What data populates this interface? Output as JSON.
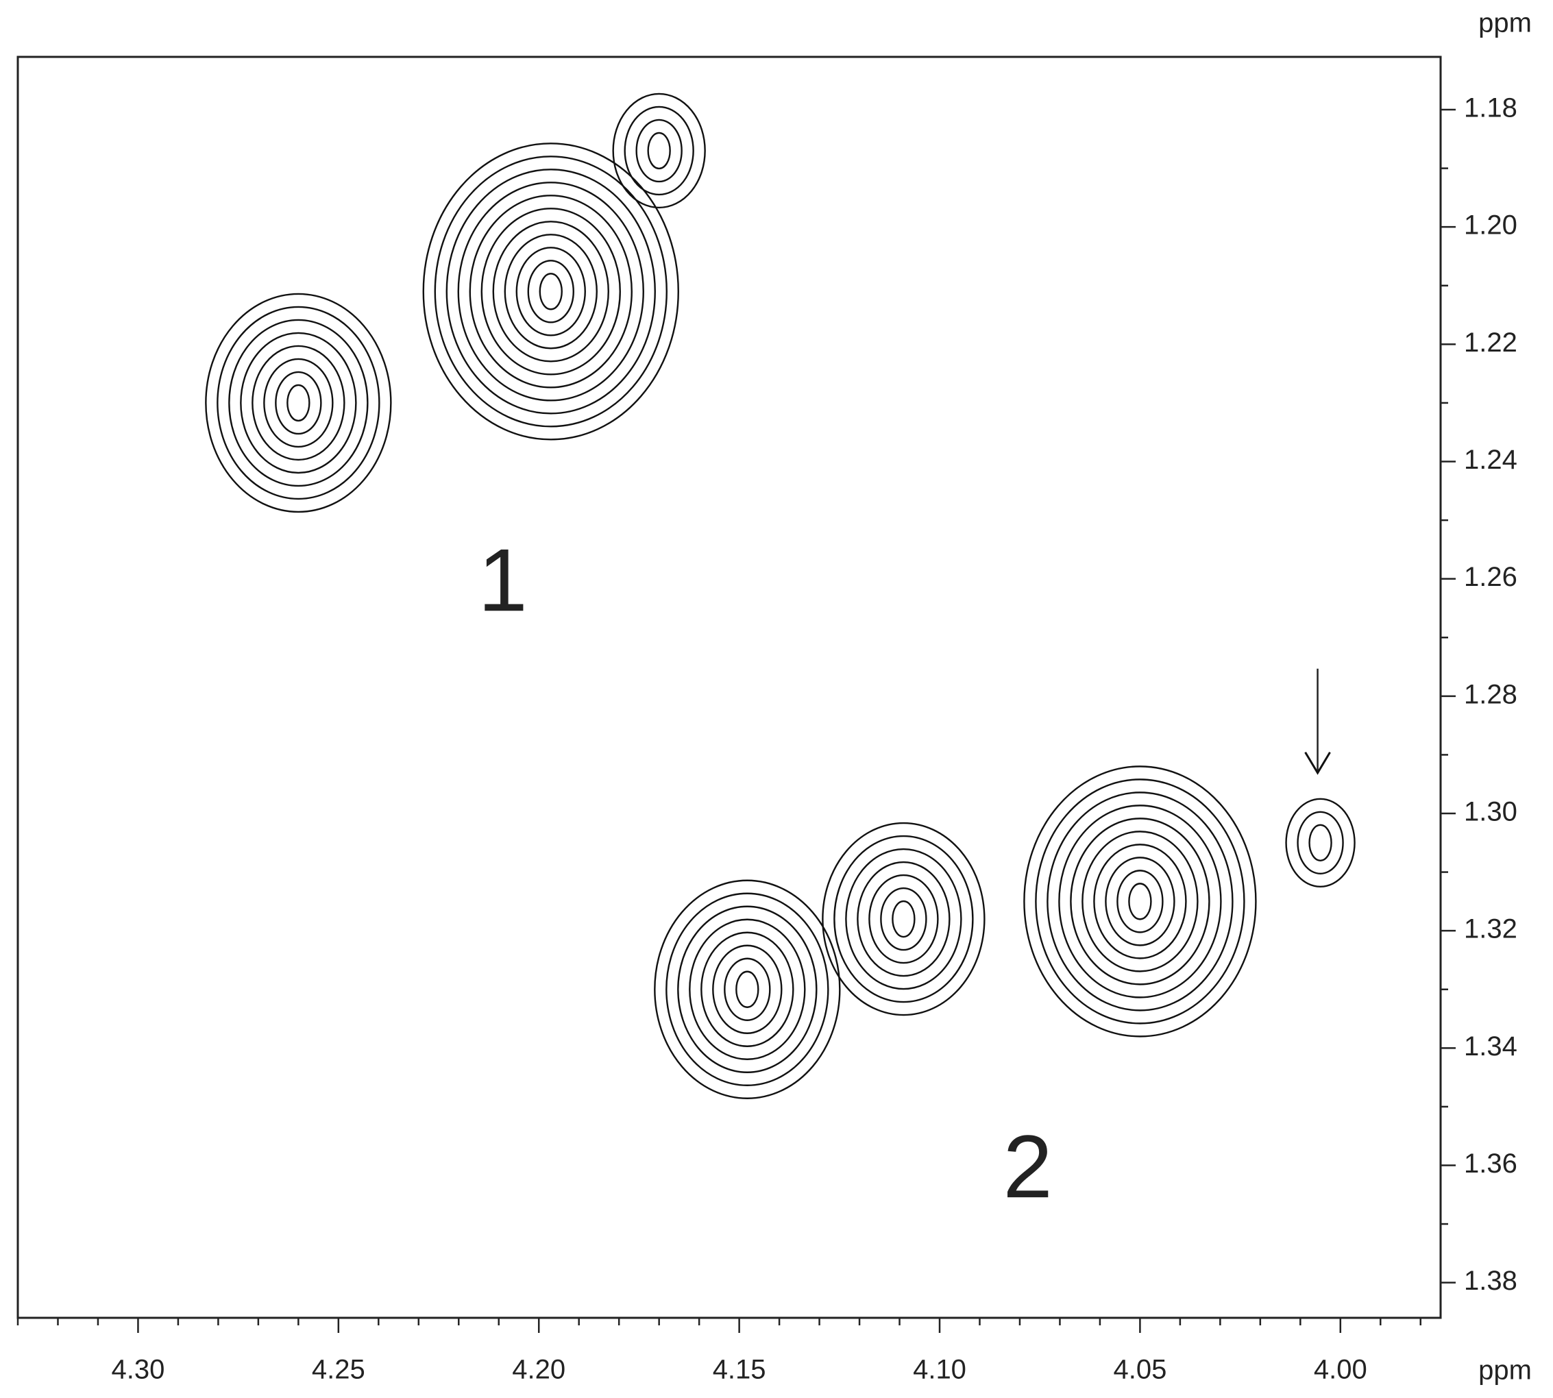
{
  "chart_data": {
    "type": "contour",
    "x_label": "ppm",
    "y_label": "ppm",
    "xlim": [
      4.33,
      3.975
    ],
    "ylim": [
      1.171,
      1.386
    ],
    "xticks": [
      {
        "value": 4.3,
        "label": "4.30"
      },
      4.25,
      {
        "value": 4.2,
        "label": "4.20"
      },
      4.15,
      {
        "value": 4.1,
        "label": "4.10"
      },
      4.05,
      {
        "value": 4.0,
        "label": "4.00"
      }
    ],
    "yticks": [
      1.18,
      {
        "value": 1.2,
        "label": "1.20"
      },
      1.22,
      1.24,
      1.26,
      1.28,
      {
        "value": 1.3,
        "label": "1.30"
      },
      1.32,
      1.34,
      1.36,
      1.38
    ],
    "color": "#111111",
    "groups": [
      {
        "label": "1",
        "peaks": [
          {
            "x": 4.26,
            "y": 1.23,
            "levels": 8
          },
          {
            "x": 4.197,
            "y": 1.211,
            "levels": 11
          },
          {
            "x": 4.17,
            "y": 1.187,
            "levels": 4
          }
        ]
      },
      {
        "label": "2",
        "peaks": [
          {
            "x": 4.148,
            "y": 1.33,
            "levels": 8
          },
          {
            "x": 4.109,
            "y": 1.318,
            "levels": 7
          },
          {
            "x": 4.05,
            "y": 1.315,
            "levels": 10
          },
          {
            "x": 4.005,
            "y": 1.305,
            "levels": 3,
            "arrow": true
          }
        ]
      }
    ]
  }
}
